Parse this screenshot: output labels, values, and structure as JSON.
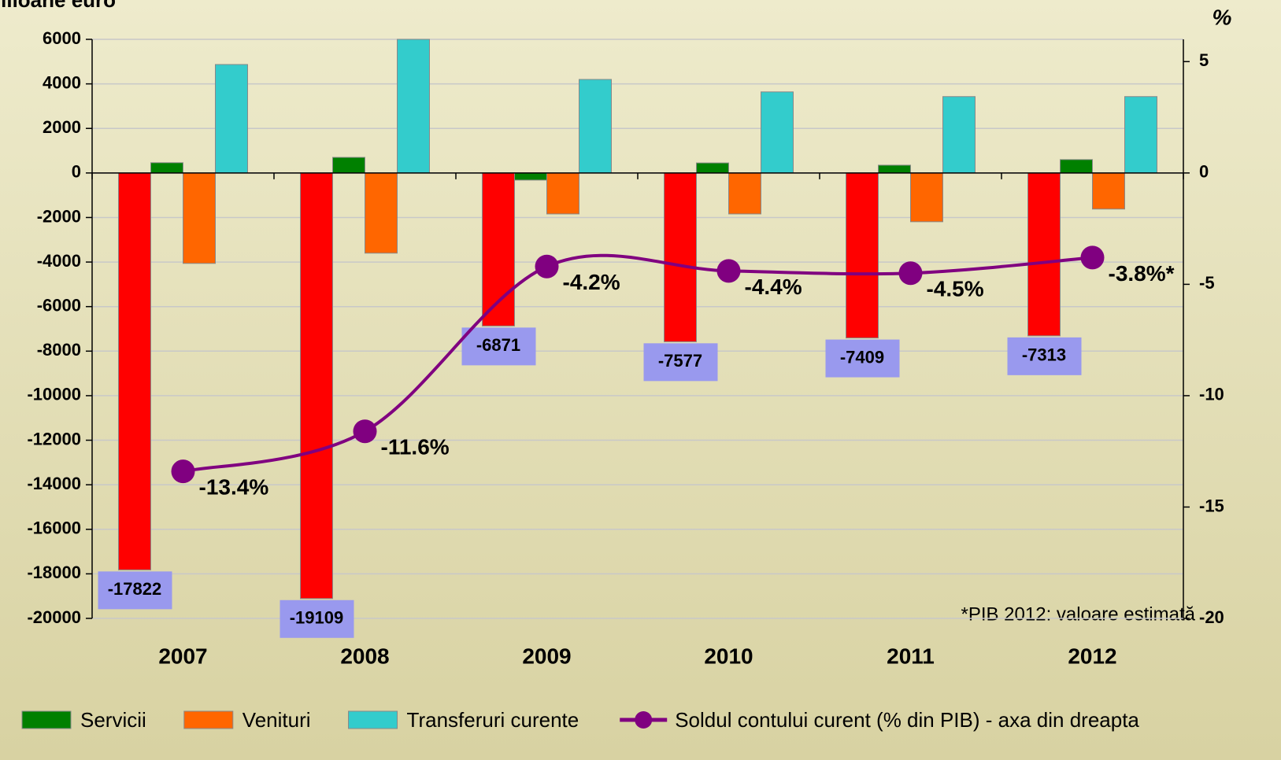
{
  "chart_data": {
    "type": "bar",
    "y_label": "milioane euro",
    "y2_label": "%",
    "annotation": "*PIB 2012: valoare estimată",
    "categories": [
      "2007",
      "2008",
      "2009",
      "2010",
      "2011",
      "2012"
    ],
    "ylim": [
      -20000,
      6000
    ],
    "yticks": [
      -20000,
      -18000,
      -16000,
      -14000,
      -12000,
      -10000,
      -8000,
      -6000,
      -4000,
      -2000,
      0,
      2000,
      4000,
      6000
    ],
    "y2lim": [
      -20,
      6
    ],
    "y2ticks": [
      -20,
      -15,
      -10,
      -5,
      0,
      5
    ],
    "grid": true,
    "series": [
      {
        "color": "#ff0000",
        "values": [
          -17822,
          -19109,
          -6871,
          -7577,
          -7409,
          -7313
        ],
        "value_labels": [
          "-17822",
          "-19109",
          "-6871",
          "-7577",
          "-7409",
          "-7313"
        ]
      },
      {
        "name": "Servicii",
        "color": "#008000",
        "values": [
          460,
          700,
          -320,
          450,
          350,
          600
        ]
      },
      {
        "name": "Venituri",
        "color": "#ff6600",
        "values": [
          -4060,
          -3600,
          -1840,
          -1840,
          -2190,
          -1620
        ]
      },
      {
        "name": "Transferuri curente",
        "color": "#33cccc",
        "values": [
          4870,
          6000,
          4200,
          3640,
          3430,
          3430
        ]
      },
      {
        "name": "Soldul contului curent (% din PIB) - axa din dreapta",
        "type": "line",
        "axis": "y2",
        "color": "#800080",
        "values": [
          -13.4,
          -11.6,
          -4.2,
          -4.4,
          -4.5,
          -3.8
        ],
        "value_labels": [
          "-13.4%",
          "-11.6%",
          "-4.2%",
          "-4.4%",
          "-4.5%",
          "-3.8%*"
        ]
      }
    ]
  }
}
